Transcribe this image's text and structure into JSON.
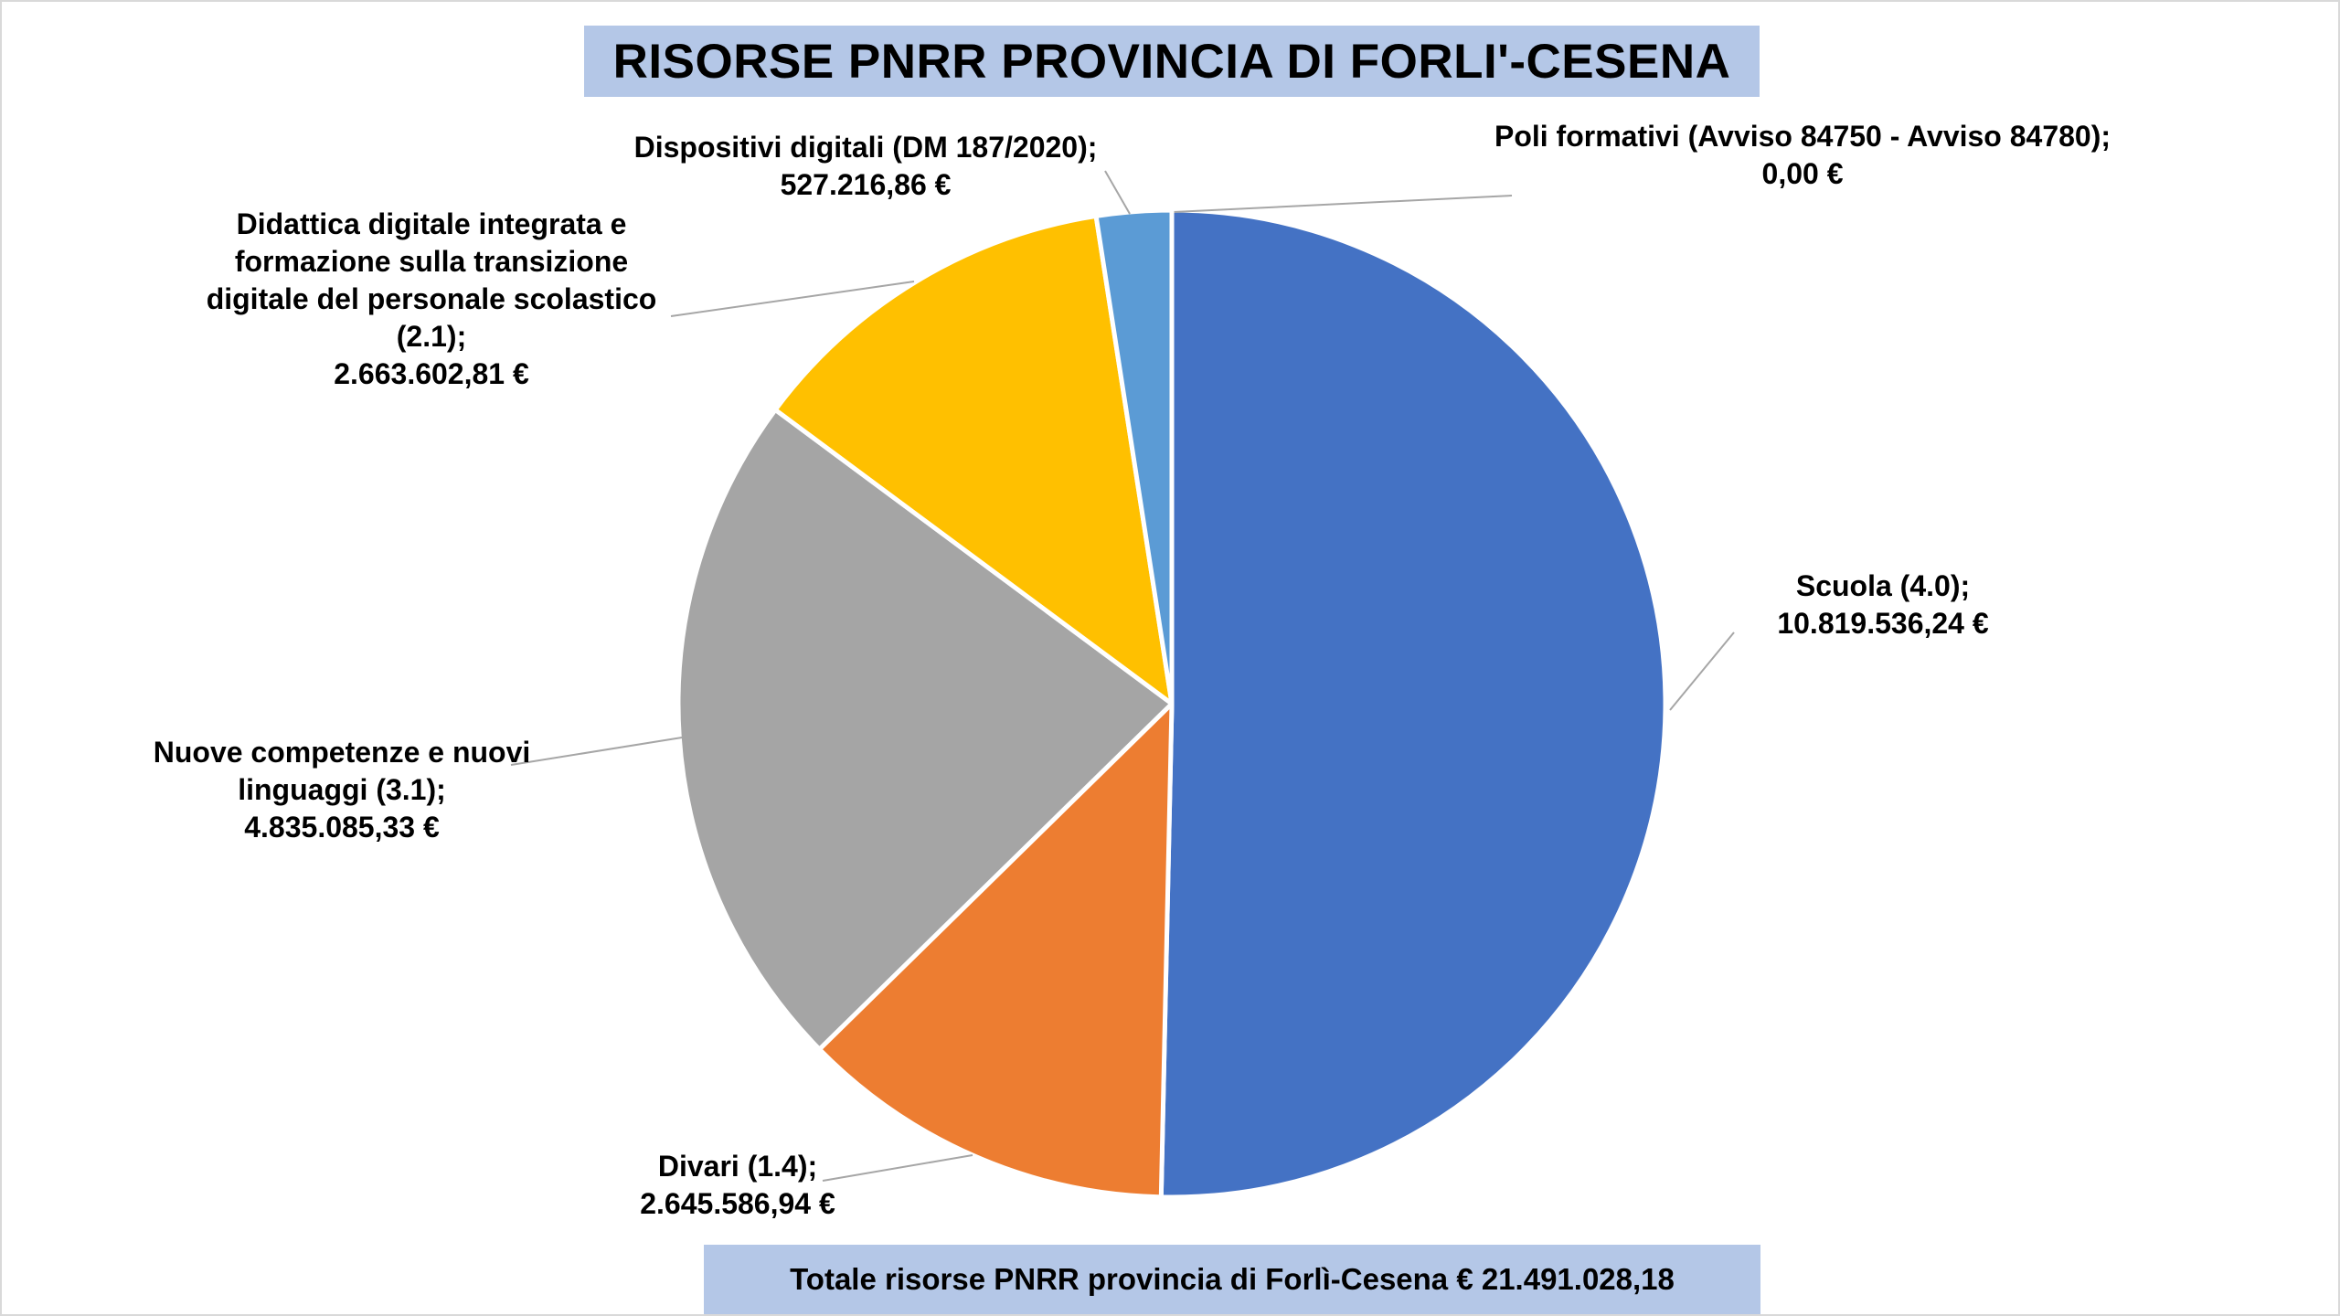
{
  "title": "RISORSE PNRR PROVINCIA DI FORLI'-CESENA",
  "footer": "Totale risorse PNRR provincia di Forlì-Cesena € 21.491.028,18",
  "chart_data": {
    "type": "pie",
    "title": "RISORSE PNRR PROVINCIA DI FORLI'-CESENA",
    "slices": [
      {
        "name": "Scuola (4.0)",
        "value": 10819536.24,
        "value_label": "10.819.536,24 €",
        "color": "#4472c4",
        "label_lines": [
          "Scuola (4.0);",
          "10.819.536,24 €"
        ]
      },
      {
        "name": "Divari (1.4)",
        "value": 2645586.94,
        "value_label": "2.645.586,94 €",
        "color": "#ed7d31",
        "label_lines": [
          "Divari (1.4);",
          "2.645.586,94 €"
        ]
      },
      {
        "name": "Nuove competenze e nuovi linguaggi (3.1)",
        "value": 4835085.33,
        "value_label": "4.835.085,33 €",
        "color": "#a5a5a5",
        "label_lines": [
          "Nuove competenze e nuovi",
          "linguaggi (3.1);",
          "4.835.085,33 €"
        ]
      },
      {
        "name": "Didattica digitale integrata e formazione sulla transizione digitale del personale scolastico (2.1)",
        "value": 2663602.81,
        "value_label": "2.663.602,81 €",
        "color": "#ffc000",
        "label_lines": [
          "Didattica digitale integrata e",
          "formazione sulla transizione",
          "digitale del personale scolastico",
          "(2.1);",
          "2.663.602,81 €"
        ]
      },
      {
        "name": "Dispositivi digitali (DM 187/2020)",
        "value": 527216.86,
        "value_label": "527.216,86 €",
        "color": "#5b9bd5",
        "label_lines": [
          "Dispositivi digitali (DM 187/2020);",
          "527.216,86 €"
        ]
      },
      {
        "name": "Poli formativi (Avviso 84750 - Avviso 84780)",
        "value": 0.0,
        "value_label": "0,00 €",
        "color": "#70ad47",
        "label_lines": [
          "Poli formativi (Avviso 84750 - Avviso 84780);",
          "0,00 €"
        ]
      }
    ],
    "total_label": "Totale risorse PNRR provincia di Forlì-Cesena € 21.491.028,18",
    "legend": "none",
    "start_angle_deg": 0,
    "direction": "clockwise"
  }
}
